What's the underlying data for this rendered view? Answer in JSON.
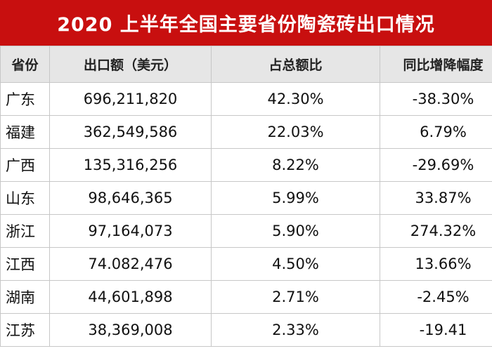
{
  "title": "2020 上半年全国主要省份陶瓷砖出口情况",
  "chart_data": {
    "type": "table",
    "title": "2020 上半年全国主要省份陶瓷砖出口情况",
    "columns": [
      "省份",
      "出口额（美元）",
      "占总额比",
      "同比增降幅度"
    ],
    "rows": [
      {
        "province": "广东",
        "export": "696,211,820",
        "share": "42.30%",
        "yoy": "-38.30%"
      },
      {
        "province": "福建",
        "export": "362,549,586",
        "share": "22.03%",
        "yoy": "6.79%"
      },
      {
        "province": "广西",
        "export": "135,316,256",
        "share": "8.22%",
        "yoy": "-29.69%"
      },
      {
        "province": "山东",
        "export": "98,646,365",
        "share": "5.99%",
        "yoy": "33.87%"
      },
      {
        "province": "浙江",
        "export": "97,164,073",
        "share": "5.90%",
        "yoy": "274.32%"
      },
      {
        "province": "江西",
        "export": "74.082,476",
        "share": "4.50%",
        "yoy": "13.66%"
      },
      {
        "province": "湖南",
        "export": "44,601,898",
        "share": "2.71%",
        "yoy": "-2.45%"
      },
      {
        "province": "江苏",
        "export": "38,369,008",
        "share": "2.33%",
        "yoy": "-19.41"
      }
    ]
  }
}
